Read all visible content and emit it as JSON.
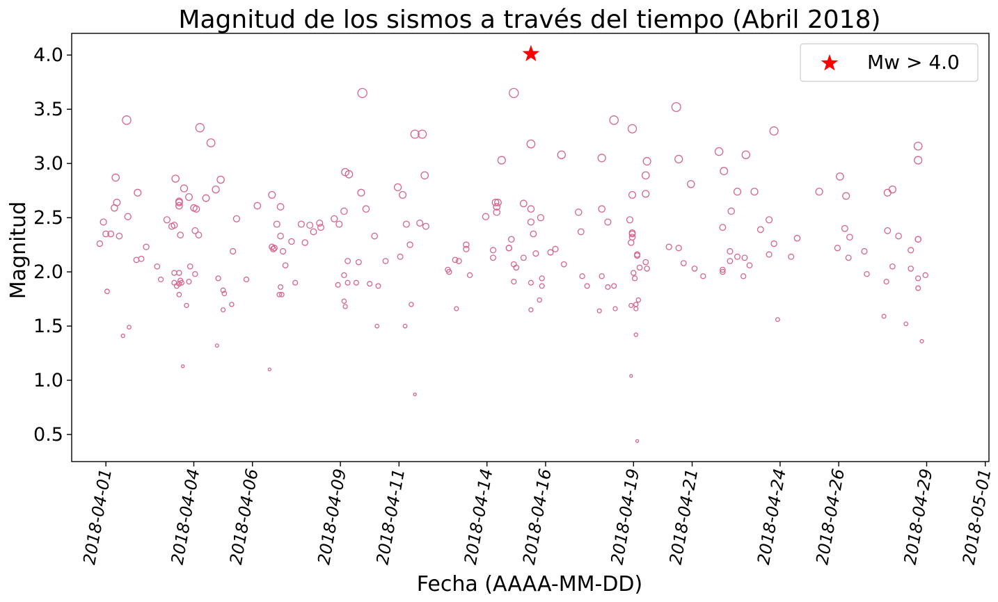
{
  "chart_data": {
    "type": "scatter",
    "title": "Magnitud de los sismos a través del tiempo (Abril 2018)",
    "xlabel": "Fecha (AAAA-MM-DD)",
    "ylabel": "Magnitud",
    "ylim": [
      0.25,
      4.2
    ],
    "xlim": [
      "2018-03-30T20:00",
      "2018-05-01T03:00"
    ],
    "yticks": [
      "0.5",
      "1.0",
      "1.5",
      "2.0",
      "2.5",
      "3.0",
      "3.5",
      "4.0"
    ],
    "xticks": [
      "2018-04-01",
      "2018-04-04",
      "2018-04-06",
      "2018-04-09",
      "2018-04-11",
      "2018-04-14",
      "2018-04-16",
      "2018-04-19",
      "2018-04-21",
      "2018-04-24",
      "2018-04-26",
      "2018-04-29",
      "2018-05-01"
    ],
    "grid": false,
    "legend_position": "top-right",
    "colors": {
      "markers": "#d6648f",
      "star": "#ff0000"
    },
    "series": [
      {
        "marker": "open-circle",
        "points": [
          [
            "2018-03-31T19:00",
            2.26
          ],
          [
            "2018-03-31T22:00",
            2.46
          ],
          [
            "2018-04-01T00:00",
            2.35
          ],
          [
            "2018-04-01T01:00",
            1.82
          ],
          [
            "2018-04-01T04:00",
            2.35
          ],
          [
            "2018-04-01T07:00",
            2.59
          ],
          [
            "2018-04-01T08:00",
            2.87
          ],
          [
            "2018-04-01T09:00",
            2.64
          ],
          [
            "2018-04-01T11:00",
            2.33
          ],
          [
            "2018-04-01T14:00",
            1.41
          ],
          [
            "2018-04-01T17:00",
            3.4
          ],
          [
            "2018-04-01T18:00",
            2.51
          ],
          [
            "2018-04-01T19:00",
            1.49
          ],
          [
            "2018-04-02T01:00",
            2.11
          ],
          [
            "2018-04-02T02:00",
            2.73
          ],
          [
            "2018-04-02T05:00",
            2.12
          ],
          [
            "2018-04-02T09:00",
            2.23
          ],
          [
            "2018-04-02T18:00",
            2.05
          ],
          [
            "2018-04-02T21:00",
            1.93
          ],
          [
            "2018-04-03T02:00",
            2.48
          ],
          [
            "2018-04-03T06:00",
            2.42
          ],
          [
            "2018-04-03T08:00",
            2.43
          ],
          [
            "2018-04-03T08:00",
            1.99
          ],
          [
            "2018-04-03T08:00",
            1.9
          ],
          [
            "2018-04-03T09:00",
            2.86
          ],
          [
            "2018-04-03T10:00",
            1.87
          ],
          [
            "2018-04-03T12:00",
            2.64
          ],
          [
            "2018-04-03T12:00",
            2.65
          ],
          [
            "2018-04-03T12:00",
            1.89
          ],
          [
            "2018-04-03T12:00",
            1.79
          ],
          [
            "2018-04-03T12:00",
            2.61
          ],
          [
            "2018-04-03T12:00",
            1.99
          ],
          [
            "2018-04-03T13:00",
            2.34
          ],
          [
            "2018-04-03T13:00",
            1.92
          ],
          [
            "2018-04-03T14:00",
            1.9
          ],
          [
            "2018-04-03T15:00",
            1.13
          ],
          [
            "2018-04-03T16:00",
            2.77
          ],
          [
            "2018-04-03T18:00",
            1.69
          ],
          [
            "2018-04-03T20:00",
            2.69
          ],
          [
            "2018-04-03T20:00",
            1.91
          ],
          [
            "2018-04-03T21:00",
            2.05
          ],
          [
            "2018-04-04T00:00",
            2.59
          ],
          [
            "2018-04-04T01:00",
            2.38
          ],
          [
            "2018-04-04T01:00",
            1.98
          ],
          [
            "2018-04-04T02:00",
            2.58
          ],
          [
            "2018-04-04T04:00",
            2.34
          ],
          [
            "2018-04-04T05:00",
            3.33
          ],
          [
            "2018-04-04T10:00",
            2.68
          ],
          [
            "2018-04-04T14:00",
            3.19
          ],
          [
            "2018-04-04T18:00",
            2.76
          ],
          [
            "2018-04-04T19:00",
            1.32
          ],
          [
            "2018-04-04T20:00",
            1.94
          ],
          [
            "2018-04-04T22:00",
            2.85
          ],
          [
            "2018-04-05T00:00",
            1.83
          ],
          [
            "2018-04-05T00:00",
            1.65
          ],
          [
            "2018-04-05T01:00",
            1.8
          ],
          [
            "2018-04-05T07:00",
            1.7
          ],
          [
            "2018-04-05T08:00",
            2.19
          ],
          [
            "2018-04-05T11:00",
            2.49
          ],
          [
            "2018-04-05T19:00",
            1.93
          ],
          [
            "2018-04-06T04:00",
            2.61
          ],
          [
            "2018-04-06T14:00",
            1.1
          ],
          [
            "2018-04-06T16:00",
            2.23
          ],
          [
            "2018-04-06T16:00",
            2.71
          ],
          [
            "2018-04-06T17:00",
            2.21
          ],
          [
            "2018-04-06T18:00",
            2.22
          ],
          [
            "2018-04-06T20:00",
            2.44
          ],
          [
            "2018-04-06T22:00",
            1.79
          ],
          [
            "2018-04-06T23:00",
            2.33
          ],
          [
            "2018-04-06T23:00",
            2.6
          ],
          [
            "2018-04-06T23:00",
            1.86
          ],
          [
            "2018-04-07T00:00",
            1.79
          ],
          [
            "2018-04-07T01:00",
            2.19
          ],
          [
            "2018-04-07T03:00",
            2.06
          ],
          [
            "2018-04-07T08:00",
            2.28
          ],
          [
            "2018-04-07T11:00",
            1.9
          ],
          [
            "2018-04-07T16:00",
            2.44
          ],
          [
            "2018-04-07T19:00",
            2.27
          ],
          [
            "2018-04-07T23:00",
            2.43
          ],
          [
            "2018-04-08T02:00",
            2.37
          ],
          [
            "2018-04-08T07:00",
            2.45
          ],
          [
            "2018-04-08T08:00",
            2.41
          ],
          [
            "2018-04-08T19:00",
            2.49
          ],
          [
            "2018-04-08T22:00",
            1.88
          ],
          [
            "2018-04-08T23:00",
            2.44
          ],
          [
            "2018-04-09T03:00",
            1.73
          ],
          [
            "2018-04-09T03:00",
            2.56
          ],
          [
            "2018-04-09T03:00",
            1.97
          ],
          [
            "2018-04-09T04:00",
            2.92
          ],
          [
            "2018-04-09T04:00",
            1.68
          ],
          [
            "2018-04-09T06:00",
            2.1
          ],
          [
            "2018-04-09T06:00",
            1.9
          ],
          [
            "2018-04-09T07:00",
            2.9
          ],
          [
            "2018-04-09T13:00",
            1.9
          ],
          [
            "2018-04-09T15:00",
            2.09
          ],
          [
            "2018-04-09T17:00",
            2.73
          ],
          [
            "2018-04-09T18:00",
            3.65
          ],
          [
            "2018-04-09T21:00",
            2.58
          ],
          [
            "2018-04-10T00:00",
            1.89
          ],
          [
            "2018-04-10T04:00",
            2.33
          ],
          [
            "2018-04-10T06:00",
            1.5
          ],
          [
            "2018-04-10T07:00",
            1.87
          ],
          [
            "2018-04-10T13:00",
            2.1
          ],
          [
            "2018-04-10T23:00",
            2.78
          ],
          [
            "2018-04-11T01:00",
            2.14
          ],
          [
            "2018-04-11T03:00",
            2.71
          ],
          [
            "2018-04-11T05:00",
            1.5
          ],
          [
            "2018-04-11T06:00",
            2.44
          ],
          [
            "2018-04-11T09:00",
            2.25
          ],
          [
            "2018-04-11T10:00",
            1.7
          ],
          [
            "2018-04-11T13:00",
            0.87
          ],
          [
            "2018-04-11T13:00",
            3.27
          ],
          [
            "2018-04-11T17:00",
            2.45
          ],
          [
            "2018-04-11T19:00",
            3.27
          ],
          [
            "2018-04-11T21:00",
            2.89
          ],
          [
            "2018-04-11T22:00",
            2.42
          ],
          [
            "2018-04-12T16:00",
            2.02
          ],
          [
            "2018-04-12T17:00",
            2.0
          ],
          [
            "2018-04-12T22:00",
            2.11
          ],
          [
            "2018-04-12T23:00",
            1.66
          ],
          [
            "2018-04-13T01:00",
            2.1
          ],
          [
            "2018-04-13T07:00",
            2.25
          ],
          [
            "2018-04-13T07:00",
            2.21
          ],
          [
            "2018-04-13T10:00",
            1.97
          ],
          [
            "2018-04-13T23:00",
            2.51
          ],
          [
            "2018-04-14T05:00",
            2.2
          ],
          [
            "2018-04-14T05:00",
            2.13
          ],
          [
            "2018-04-14T07:00",
            2.64
          ],
          [
            "2018-04-14T08:00",
            2.6
          ],
          [
            "2018-04-14T08:00",
            2.55
          ],
          [
            "2018-04-14T09:00",
            2.64
          ],
          [
            "2018-04-14T12:00",
            3.03
          ],
          [
            "2018-04-14T18:00",
            2.22
          ],
          [
            "2018-04-14T18:00",
            2.22
          ],
          [
            "2018-04-14T20:00",
            2.3
          ],
          [
            "2018-04-14T22:00",
            3.65
          ],
          [
            "2018-04-14T22:00",
            2.07
          ],
          [
            "2018-04-14T22:00",
            1.91
          ],
          [
            "2018-04-15T00:00",
            2.04
          ],
          [
            "2018-04-15T06:00",
            2.13
          ],
          [
            "2018-04-15T06:00",
            2.63
          ],
          [
            "2018-04-15T12:00",
            3.18
          ],
          [
            "2018-04-15T12:00",
            2.58
          ],
          [
            "2018-04-15T12:00",
            2.46
          ],
          [
            "2018-04-15T12:00",
            1.9
          ],
          [
            "2018-04-15T12:00",
            1.65
          ],
          [
            "2018-04-15T14:00",
            2.35
          ],
          [
            "2018-04-15T16:00",
            2.17
          ],
          [
            "2018-04-15T19:00",
            1.74
          ],
          [
            "2018-04-15T20:00",
            2.5
          ],
          [
            "2018-04-15T21:00",
            1.94
          ],
          [
            "2018-04-15T21:00",
            1.87
          ],
          [
            "2018-04-16T04:00",
            2.18
          ],
          [
            "2018-04-16T08:00",
            2.21
          ],
          [
            "2018-04-16T13:00",
            3.08
          ],
          [
            "2018-04-16T15:00",
            2.07
          ],
          [
            "2018-04-17T03:00",
            2.55
          ],
          [
            "2018-04-17T05:00",
            2.37
          ],
          [
            "2018-04-17T06:00",
            1.96
          ],
          [
            "2018-04-17T10:00",
            1.87
          ],
          [
            "2018-04-17T20:00",
            1.64
          ],
          [
            "2018-04-17T22:00",
            2.58
          ],
          [
            "2018-04-17T22:00",
            3.05
          ],
          [
            "2018-04-17T22:00",
            1.96
          ],
          [
            "2018-04-18T03:00",
            2.46
          ],
          [
            "2018-04-18T03:00",
            1.86
          ],
          [
            "2018-04-18T08:00",
            3.4
          ],
          [
            "2018-04-18T08:00",
            1.87
          ],
          [
            "2018-04-18T09:00",
            1.66
          ],
          [
            "2018-04-18T21:00",
            2.48
          ],
          [
            "2018-04-18T22:00",
            2.27
          ],
          [
            "2018-04-18T22:00",
            1.04
          ],
          [
            "2018-04-18T22:00",
            1.69
          ],
          [
            "2018-04-18T23:00",
            2.32
          ],
          [
            "2018-04-18T23:00",
            2.35
          ],
          [
            "2018-04-18T23:00",
            2.36
          ],
          [
            "2018-04-18T23:00",
            2.71
          ],
          [
            "2018-04-18T23:00",
            3.32
          ],
          [
            "2018-04-19T00:00",
            1.99
          ],
          [
            "2018-04-19T01:00",
            1.94
          ],
          [
            "2018-04-19T02:00",
            1.7
          ],
          [
            "2018-04-19T02:00",
            1.66
          ],
          [
            "2018-04-19T02:00",
            1.42
          ],
          [
            "2018-04-19T03:00",
            2.15
          ],
          [
            "2018-04-19T03:00",
            2.16
          ],
          [
            "2018-04-19T03:00",
            0.44
          ],
          [
            "2018-04-19T04:00",
            1.74
          ],
          [
            "2018-04-19T05:00",
            2.04
          ],
          [
            "2018-04-19T10:00",
            2.72
          ],
          [
            "2018-04-19T10:00",
            2.89
          ],
          [
            "2018-04-19T10:00",
            2.09
          ],
          [
            "2018-04-19T11:00",
            2.03
          ],
          [
            "2018-04-19T11:00",
            3.02
          ],
          [
            "2018-04-20T05:00",
            2.23
          ],
          [
            "2018-04-20T11:00",
            3.52
          ],
          [
            "2018-04-20T13:00",
            2.22
          ],
          [
            "2018-04-20T13:00",
            3.04
          ],
          [
            "2018-04-20T17:00",
            2.08
          ],
          [
            "2018-04-20T23:00",
            2.81
          ],
          [
            "2018-04-21T02:00",
            2.03
          ],
          [
            "2018-04-21T09:00",
            1.96
          ],
          [
            "2018-04-21T22:00",
            3.11
          ],
          [
            "2018-04-22T01:00",
            2.41
          ],
          [
            "2018-04-22T01:00",
            2.02
          ],
          [
            "2018-04-22T01:00",
            2.0
          ],
          [
            "2018-04-22T02:00",
            2.93
          ],
          [
            "2018-04-22T07:00",
            2.1
          ],
          [
            "2018-04-22T07:00",
            2.19
          ],
          [
            "2018-04-22T08:00",
            2.56
          ],
          [
            "2018-04-22T13:00",
            2.74
          ],
          [
            "2018-04-22T13:00",
            2.14
          ],
          [
            "2018-04-22T18:00",
            1.96
          ],
          [
            "2018-04-22T19:00",
            2.13
          ],
          [
            "2018-04-22T20:00",
            3.08
          ],
          [
            "2018-04-22T23:00",
            2.06
          ],
          [
            "2018-04-23T03:00",
            2.74
          ],
          [
            "2018-04-23T08:00",
            2.39
          ],
          [
            "2018-04-23T15:00",
            2.48
          ],
          [
            "2018-04-23T15:00",
            2.16
          ],
          [
            "2018-04-23T19:00",
            2.26
          ],
          [
            "2018-04-23T19:00",
            3.3
          ],
          [
            "2018-04-23T22:00",
            1.56
          ],
          [
            "2018-04-24T09:00",
            2.14
          ],
          [
            "2018-04-24T14:00",
            2.31
          ],
          [
            "2018-04-25T08:00",
            2.74
          ],
          [
            "2018-04-25T23:00",
            2.22
          ],
          [
            "2018-04-26T01:00",
            2.88
          ],
          [
            "2018-04-26T05:00",
            2.4
          ],
          [
            "2018-04-26T06:00",
            2.7
          ],
          [
            "2018-04-26T08:00",
            2.13
          ],
          [
            "2018-04-26T09:00",
            2.32
          ],
          [
            "2018-04-26T21:00",
            2.19
          ],
          [
            "2018-04-26T23:00",
            1.98
          ],
          [
            "2018-04-27T13:00",
            1.59
          ],
          [
            "2018-04-27T15:00",
            1.91
          ],
          [
            "2018-04-27T16:00",
            2.38
          ],
          [
            "2018-04-27T16:00",
            2.73
          ],
          [
            "2018-04-27T20:00",
            2.05
          ],
          [
            "2018-04-27T20:00",
            2.76
          ],
          [
            "2018-04-28T01:00",
            2.33
          ],
          [
            "2018-04-28T07:00",
            1.52
          ],
          [
            "2018-04-28T11:00",
            2.2
          ],
          [
            "2018-04-28T11:00",
            2.03
          ],
          [
            "2018-04-28T17:00",
            2.3
          ],
          [
            "2018-04-28T17:00",
            1.94
          ],
          [
            "2018-04-28T17:00",
            1.85
          ],
          [
            "2018-04-28T17:00",
            2.3
          ],
          [
            "2018-04-28T17:00",
            3.03
          ],
          [
            "2018-04-28T17:00",
            3.16
          ],
          [
            "2018-04-28T20:00",
            1.36
          ],
          [
            "2018-04-28T23:00",
            1.97
          ]
        ]
      },
      {
        "name": "Mw > 4.0",
        "marker": "star",
        "points": [
          [
            "2018-04-15T12:00",
            4.01
          ]
        ]
      }
    ]
  }
}
